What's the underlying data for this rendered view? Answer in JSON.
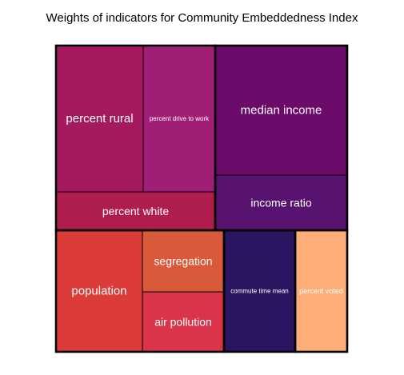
{
  "chart_data": {
    "type": "treemap",
    "title": "Weights of indicators for Community Embeddedness Index",
    "groups": [
      {
        "items": [
          {
            "label": "percent rural",
            "value": 0.078,
            "color": "#a51a5f"
          },
          {
            "label": "percent drive to work",
            "value": 0.066,
            "color": "#a11e76"
          },
          {
            "label": "percent white",
            "value": 0.052,
            "color": "#ae1d4b"
          }
        ]
      },
      {
        "items": [
          {
            "label": "median income",
            "value": 0.117,
            "color": "#6c0a6a"
          },
          {
            "label": "income ratio",
            "value": 0.053,
            "color": "#581270"
          }
        ]
      },
      {
        "items": [
          {
            "label": "population",
            "value": 0.117,
            "color": "#db3c3a"
          },
          {
            "label": "segregation",
            "value": 0.055,
            "color": "#d95a3a"
          },
          {
            "label": "air pollution",
            "value": 0.052,
            "color": "#d9344a"
          }
        ]
      },
      {
        "items": [
          {
            "label": "commute time mean",
            "value": 0.076,
            "color": "#2c1560"
          }
        ]
      },
      {
        "items": [
          {
            "label": "percent voted",
            "value": 0.059,
            "color": "#fdae78"
          }
        ]
      }
    ]
  }
}
